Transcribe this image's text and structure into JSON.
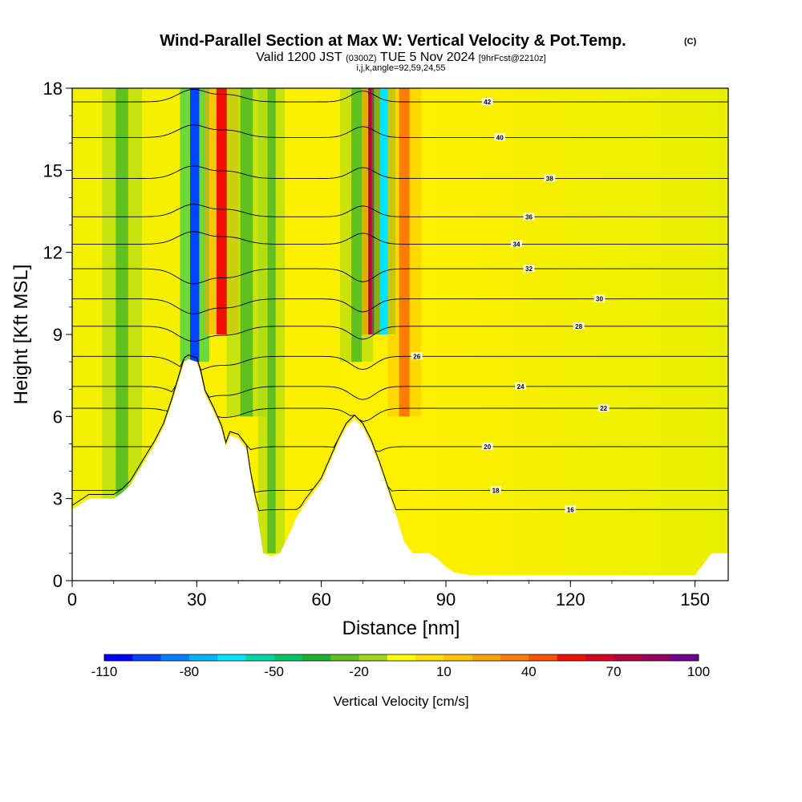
{
  "chart_data": {
    "type": "heatmap",
    "title": "Wind-Parallel Section at Max W: Vertical Velocity & Pot.Temp.",
    "title_mark": "(C)",
    "subtitle": {
      "valid": "Valid 1200 JST",
      "utc": "(0300Z)",
      "date": "TUE 5 Nov 2024",
      "fcst": "[9hrFcst@2210z]"
    },
    "index_line": "i,j,k,angle=92,59,24,55",
    "xlabel": "Distance [nm]",
    "ylabel": "Height [Kft MSL]",
    "xlim": [
      0,
      158
    ],
    "ylim": [
      0,
      18
    ],
    "x_ticks": [
      {
        "v": 0,
        "label": "0"
      },
      {
        "v": 30,
        "label": "30"
      },
      {
        "v": 60,
        "label": "60"
      },
      {
        "v": 90,
        "label": "90"
      },
      {
        "v": 120,
        "label": "120"
      },
      {
        "v": 150,
        "label": "150"
      }
    ],
    "y_ticks": [
      {
        "v": 0,
        "label": "0"
      },
      {
        "v": 3,
        "label": "3"
      },
      {
        "v": 6,
        "label": "6"
      },
      {
        "v": 9,
        "label": "9"
      },
      {
        "v": 12,
        "label": "12"
      },
      {
        "v": 15,
        "label": "15"
      },
      {
        "v": 18,
        "label": "18"
      }
    ],
    "colorbar": {
      "title": "Vertical Velocity [cm/s]",
      "labels": [
        "-110",
        "-80",
        "-50",
        "-20",
        "10",
        "40",
        "70",
        "100"
      ],
      "colors": [
        "#0000ff",
        "#0044ff",
        "#0080ff",
        "#00b4ff",
        "#00e4ff",
        "#00d8a8",
        "#00c468",
        "#20b030",
        "#60c020",
        "#a0d818",
        "#ffff00",
        "#ffe000",
        "#ffc400",
        "#ffa200",
        "#ff7c00",
        "#ff5200",
        "#f01000",
        "#d80020",
        "#b80040",
        "#980060",
        "#700090"
      ]
    },
    "terrain_kft": [
      [
        0,
        2.6
      ],
      [
        2,
        2.8
      ],
      [
        4,
        3.0
      ],
      [
        10,
        3.0
      ],
      [
        12,
        3.2
      ],
      [
        14,
        3.5
      ],
      [
        16,
        4.0
      ],
      [
        18,
        4.5
      ],
      [
        20,
        5.0
      ],
      [
        22,
        5.6
      ],
      [
        24,
        6.5
      ],
      [
        26,
        7.5
      ],
      [
        27,
        8.0
      ],
      [
        28,
        8.1
      ],
      [
        30,
        8.0
      ],
      [
        31,
        7.5
      ],
      [
        32,
        6.8
      ],
      [
        34,
        6.2
      ],
      [
        36,
        5.5
      ],
      [
        37,
        4.9
      ],
      [
        38,
        5.3
      ],
      [
        40,
        5.2
      ],
      [
        42,
        4.8
      ],
      [
        43,
        3.8
      ],
      [
        44,
        3.0
      ],
      [
        45,
        2.0
      ],
      [
        46,
        1.0
      ],
      [
        48,
        0.9
      ],
      [
        50,
        1.0
      ],
      [
        52,
        1.6
      ],
      [
        54,
        2.3
      ],
      [
        56,
        2.8
      ],
      [
        58,
        3.2
      ],
      [
        60,
        3.6
      ],
      [
        62,
        4.3
      ],
      [
        64,
        5.0
      ],
      [
        66,
        5.6
      ],
      [
        68,
        5.9
      ],
      [
        70,
        5.6
      ],
      [
        72,
        5.0
      ],
      [
        74,
        4.2
      ],
      [
        76,
        3.3
      ],
      [
        78,
        2.4
      ],
      [
        80,
        1.4
      ],
      [
        82,
        1.0
      ],
      [
        84,
        1.0
      ],
      [
        86,
        1.0
      ],
      [
        88,
        0.8
      ],
      [
        90,
        0.5
      ],
      [
        92,
        0.3
      ],
      [
        96,
        0.2
      ],
      [
        150,
        0.2
      ],
      [
        154,
        1.0
      ],
      [
        158,
        1.0
      ]
    ],
    "theta_contours": [
      {
        "value": 16,
        "y0": 2.6
      },
      {
        "value": 18,
        "y0": 3.3
      },
      {
        "value": 20,
        "y0": 4.9
      },
      {
        "value": 22,
        "y0": 6.3
      },
      {
        "value": 24,
        "y0": 7.1
      },
      {
        "value": 26,
        "y0": 8.2
      },
      {
        "value": 28,
        "y0": 9.3
      },
      {
        "value": 30,
        "y0": 10.3
      },
      {
        "value": 32,
        "y0": 11.4
      },
      {
        "value": 34,
        "y0": 12.3
      },
      {
        "value": 36,
        "y0": 13.3
      },
      {
        "value": 38,
        "y0": 14.7
      },
      {
        "value": 40,
        "y0": 16.2
      },
      {
        "value": 42,
        "y0": 17.5
      }
    ],
    "velocity_bands": [
      {
        "x": 29.5,
        "w_cms": -100,
        "width_nm": 2.2,
        "y_bottom_kft": 8.0
      },
      {
        "x": 36.0,
        "w_cms": 70,
        "width_nm": 2.5,
        "y_bottom_kft": 9.0
      },
      {
        "x": 42.0,
        "w_cms": -20,
        "width_nm": 3.0,
        "y_bottom_kft": 6.0
      },
      {
        "x": 68.5,
        "w_cms": -20,
        "width_nm": 2.5,
        "y_bottom_kft": 8.0
      },
      {
        "x": 72.0,
        "w_cms": 90,
        "width_nm": 1.4,
        "y_bottom_kft": 9.0
      },
      {
        "x": 75.0,
        "w_cms": -70,
        "width_nm": 1.8,
        "y_bottom_kft": 9.0
      },
      {
        "x": 80.0,
        "w_cms": 40,
        "width_nm": 2.5,
        "y_bottom_kft": 6.0
      },
      {
        "x": 12.0,
        "w_cms": -20,
        "width_nm": 3.0,
        "y_bottom_kft": 3.0
      },
      {
        "x": 48.0,
        "w_cms": -20,
        "width_nm": 2.0,
        "y_bottom_kft": 1.0
      }
    ]
  }
}
